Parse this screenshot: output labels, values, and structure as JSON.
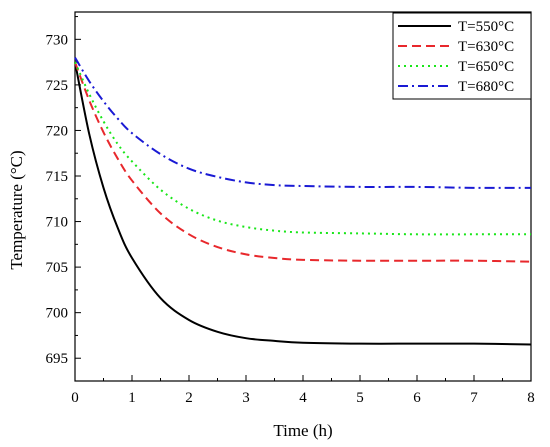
{
  "chart_data": {
    "type": "line",
    "title": "",
    "xlabel": "Time (h)",
    "ylabel": "Temperature (°C)",
    "xlim": [
      0,
      8
    ],
    "ylim": [
      692.5,
      733
    ],
    "xticks": [
      0,
      1,
      2,
      3,
      4,
      5,
      6,
      7,
      8
    ],
    "yticks": [
      695,
      700,
      705,
      710,
      715,
      720,
      725,
      730
    ],
    "grid": false,
    "legend_position": "top-right",
    "x": [
      0,
      0.25,
      0.5,
      0.75,
      1,
      1.5,
      2,
      2.5,
      3,
      3.5,
      4,
      5,
      6,
      7,
      8
    ],
    "series": [
      {
        "name": "T=550°C",
        "color": "#000000",
        "dash": "solid",
        "values": [
          727.5,
          719.6,
          713.7,
          709.3,
          706.0,
          701.6,
          699.2,
          697.9,
          697.2,
          696.9,
          696.7,
          696.6,
          696.6,
          696.6,
          696.5
        ]
      },
      {
        "name": "T=630°C",
        "color": "#e8282c",
        "dash": "dashed",
        "values": [
          727.5,
          723.3,
          719.8,
          716.9,
          714.5,
          710.9,
          708.6,
          707.2,
          706.4,
          706.0,
          705.8,
          705.7,
          705.7,
          705.7,
          705.6
        ]
      },
      {
        "name": "T=650°C",
        "color": "#19e619",
        "dash": "dotted",
        "values": [
          727.5,
          724.0,
          721.0,
          718.5,
          716.6,
          713.5,
          711.4,
          710.1,
          709.4,
          709.0,
          708.8,
          708.7,
          708.6,
          708.6,
          708.6
        ]
      },
      {
        "name": "T=680°C",
        "color": "#1a1ad4",
        "dash": "dashdot",
        "values": [
          728.0,
          725.4,
          723.2,
          721.3,
          719.7,
          717.4,
          715.8,
          714.9,
          714.3,
          714.0,
          713.9,
          713.8,
          713.8,
          713.7,
          713.7
        ]
      }
    ]
  }
}
